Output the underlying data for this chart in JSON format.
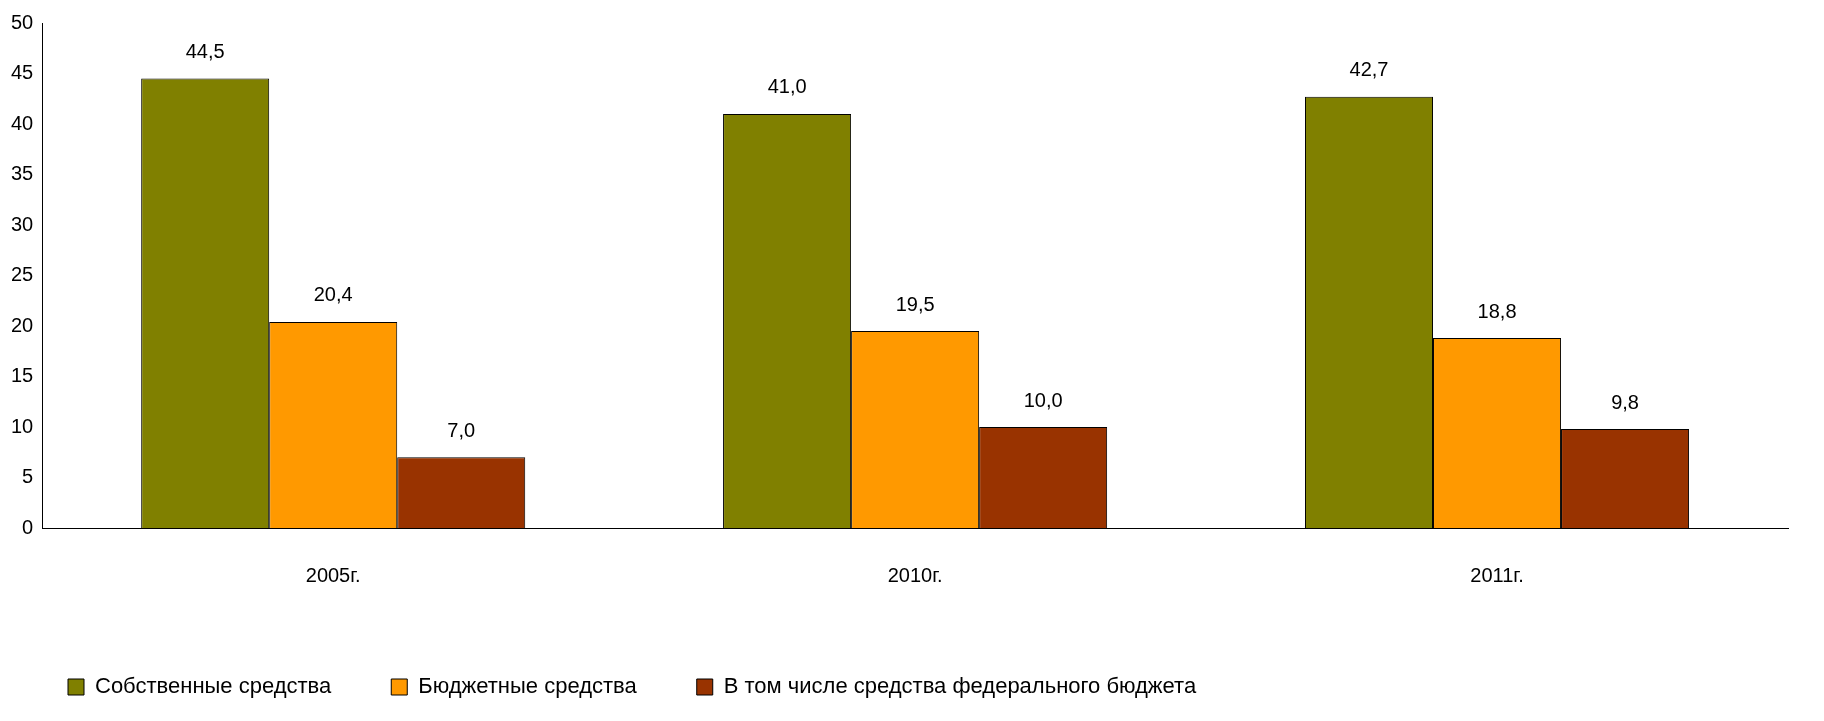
{
  "chart_data": {
    "type": "bar",
    "categories": [
      "2005г.",
      "2010г.",
      "2011г."
    ],
    "series": [
      {
        "name": "Собственные средства",
        "color": "#808000",
        "values": [
          44.5,
          41.0,
          42.7
        ],
        "value_labels": [
          "44,5",
          "41,0",
          "42,7"
        ]
      },
      {
        "name": "Бюджетные средства",
        "color": "#ff9900",
        "values": [
          20.4,
          19.5,
          18.8
        ],
        "value_labels": [
          "20,4",
          "19,5",
          "18,8"
        ]
      },
      {
        "name": "В том числе средства федерального бюджета",
        "color": "#993300",
        "values": [
          7.0,
          10.0,
          9.8
        ],
        "value_labels": [
          "7,0",
          "10,0",
          "9,8"
        ]
      }
    ],
    "ylim": [
      0,
      50
    ],
    "yticks": [
      0,
      5,
      10,
      15,
      20,
      25,
      30,
      35,
      40,
      45,
      50
    ],
    "grid": false,
    "legend": "bottom left"
  }
}
